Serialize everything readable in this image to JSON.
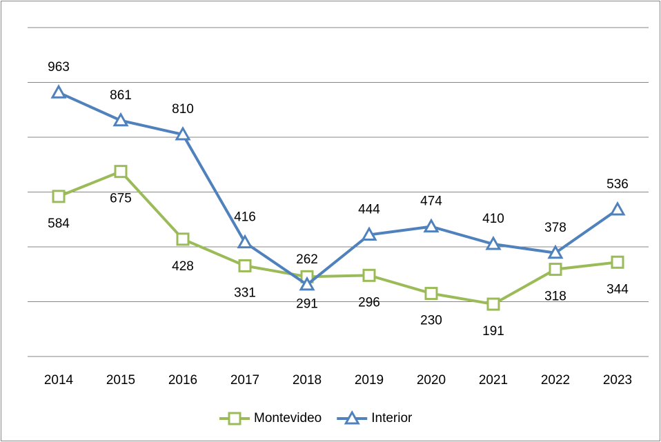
{
  "chart_data": {
    "type": "line",
    "categories": [
      "2014",
      "2015",
      "2016",
      "2017",
      "2018",
      "2019",
      "2020",
      "2021",
      "2022",
      "2023"
    ],
    "series": [
      {
        "name": "Montevideo",
        "color": "#9bbb59",
        "marker": "square",
        "values": [
          584,
          675,
          428,
          331,
          291,
          296,
          230,
          191,
          318,
          344
        ]
      },
      {
        "name": "Interior",
        "color": "#4f81bd",
        "marker": "triangle",
        "values": [
          963,
          861,
          810,
          416,
          262,
          444,
          474,
          410,
          378,
          536
        ]
      }
    ],
    "ylim": [
      0,
      1200
    ],
    "yticks": [
      0,
      200,
      400,
      600,
      800,
      1000,
      1200
    ],
    "grid": true,
    "legend": "bottom"
  }
}
